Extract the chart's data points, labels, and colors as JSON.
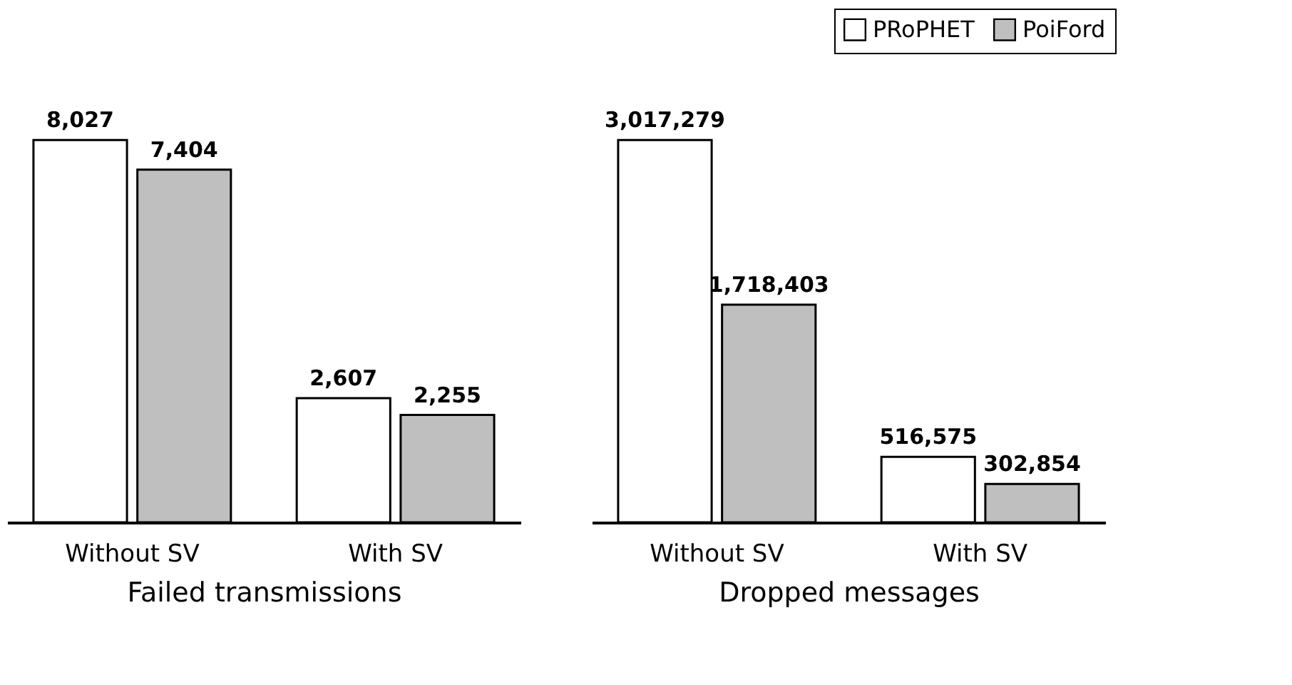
{
  "chart_data": [
    {
      "type": "bar",
      "xlabel": "Failed transmissions",
      "categories": [
        "Without SV",
        "With SV"
      ],
      "legend": "top right",
      "series": [
        {
          "name": "PRoPHET",
          "color": "#ffffff",
          "values": [
            8027,
            2607
          ],
          "value_labels": [
            "8,027",
            "2,607"
          ]
        },
        {
          "name": "PoiFord",
          "color": "#bfbfbf",
          "values": [
            7404,
            2255
          ],
          "value_labels": [
            "7,404",
            "2,255"
          ]
        }
      ]
    },
    {
      "type": "bar",
      "xlabel": "Dropped messages",
      "categories": [
        "Without SV",
        "With SV"
      ],
      "legend": "top right",
      "series": [
        {
          "name": "PRoPHET",
          "color": "#ffffff",
          "values": [
            3017279,
            516575
          ],
          "value_labels": [
            "3,017,279",
            "516,575"
          ]
        },
        {
          "name": "PoiFord",
          "color": "#bfbfbf",
          "values": [
            1718403,
            302854
          ],
          "value_labels": [
            "1,718,403",
            "302,854"
          ]
        }
      ]
    }
  ]
}
